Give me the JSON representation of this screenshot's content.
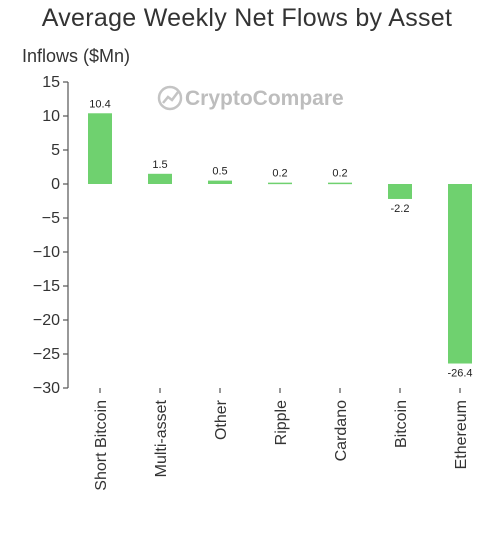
{
  "colors": {
    "bar": "#6fd16f",
    "axis": "#555555",
    "text": "#333333",
    "watermark": "#bdbdbd"
  },
  "watermark": {
    "icon": "chart-logo-icon",
    "text": "CryptoCompare"
  },
  "chart_data": {
    "type": "bar",
    "title": "Average Weekly Net Flows by Asset",
    "xlabel": "",
    "ylabel": "Inflows ($Mn)",
    "ylim": [
      -30,
      15
    ],
    "yticks": [
      15,
      10,
      5,
      0,
      -5,
      -10,
      -15,
      -20,
      -25,
      -30
    ],
    "ytick_labels": [
      "15",
      "10",
      "5",
      "0",
      "−5",
      "−10",
      "−15",
      "−20",
      "−25",
      "−30"
    ],
    "grid": false,
    "categories": [
      "Short Bitcoin",
      "Multi-asset",
      "Other",
      "Ripple",
      "Cardano",
      "Bitcoin",
      "Ethereum"
    ],
    "values": [
      10.4,
      1.5,
      0.5,
      0.2,
      0.2,
      -2.2,
      -26.4
    ],
    "data_labels": [
      "10.4",
      "1.5",
      "0.5",
      "0.2",
      "0.2",
      "-2.2",
      "-26.4"
    ]
  }
}
